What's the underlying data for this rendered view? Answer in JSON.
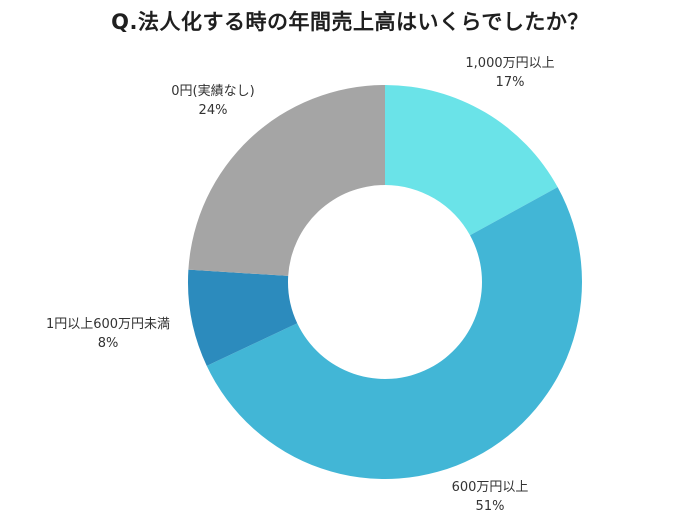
{
  "title": "Q.法人化する時の年間売上高はいくらでしたか？",
  "chart_data": {
    "type": "pie",
    "variant": "donut",
    "title": "Q.法人化する時の年間売上高はいくらでしたか？",
    "start_angle": "12 o'clock",
    "direction": "clockwise",
    "categories": [
      "1,000万円以上",
      "600万円以上",
      "1円以上600万円未満",
      "0円(実績なし)"
    ],
    "values": [
      17,
      51,
      8,
      24
    ],
    "unit": "%",
    "colors": [
      "#6AE3E8",
      "#42B6D6",
      "#2C8BBD",
      "#A5A5A5"
    ],
    "legend": "none (data labels outside slices)"
  },
  "labels": [
    {
      "name": "1,000万円以上",
      "value": "17%"
    },
    {
      "name": "600万円以上",
      "value": "51%"
    },
    {
      "name": "1円以上600万円未満",
      "value": "8%"
    },
    {
      "name": "0円(実績なし)",
      "value": "24%"
    }
  ]
}
